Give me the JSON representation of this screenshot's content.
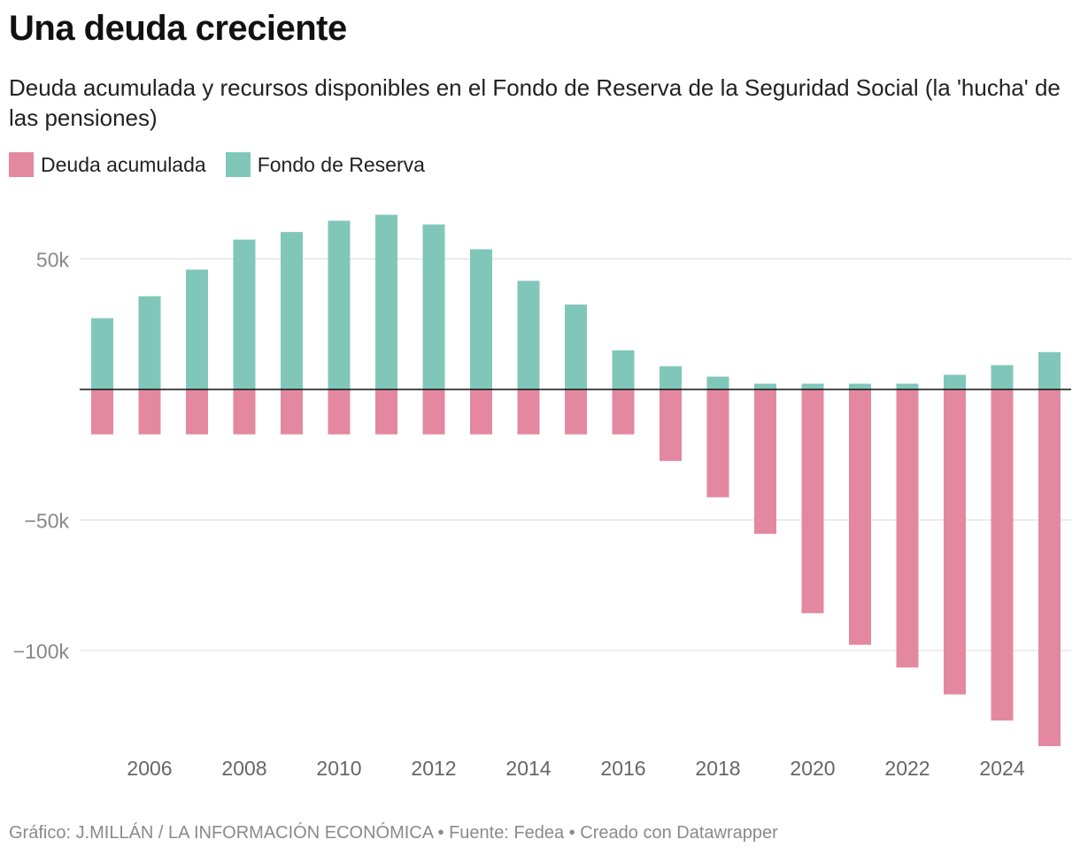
{
  "title": "Una deuda creciente",
  "subtitle": "Deuda acumulada y recursos disponibles en el Fondo de Reserva de la Seguridad Social (la 'hucha' de las pensiones)",
  "footer": "Gráfico: J.MILLÁN / LA INFORMACIÓN ECONÓMICA • Fuente: Fedea  • Creado con Datawrapper",
  "colors": {
    "deuda": "#e388a0",
    "fondo": "#80c7ba",
    "grid": "#dcdcdc",
    "baseline": "#111111",
    "tick": "#888888"
  },
  "chart_data": {
    "type": "bar",
    "x": [
      2005,
      2006,
      2007,
      2008,
      2009,
      2010,
      2011,
      2012,
      2013,
      2014,
      2015,
      2016,
      2017,
      2018,
      2019,
      2020,
      2021,
      2022,
      2023,
      2024,
      2025
    ],
    "x_tick_labels": [
      "2006",
      "2008",
      "2010",
      "2012",
      "2014",
      "2016",
      "2018",
      "2020",
      "2022",
      "2024"
    ],
    "y_tick_values": [
      50000,
      -50000,
      -100000
    ],
    "y_tick_labels": [
      "50k",
      "−50k",
      "−100k"
    ],
    "ylim": [
      -137000,
      67000
    ],
    "grid": true,
    "legend_position": "top-left",
    "series": [
      {
        "name": "Deuda acumulada",
        "values": [
          -17200,
          -17200,
          -17200,
          -17200,
          -17200,
          -17200,
          -17200,
          -17200,
          -17200,
          -17200,
          -17200,
          -17200,
          -27400,
          -41300,
          -55300,
          -85700,
          -97800,
          -106500,
          -116800,
          -126800,
          -136600
        ]
      },
      {
        "name": "Fondo de Reserva",
        "values": [
          27300,
          35700,
          45900,
          57400,
          60300,
          64600,
          66900,
          63200,
          53700,
          41600,
          32500,
          15000,
          8900,
          4900,
          2200,
          2200,
          2200,
          2200,
          5600,
          9300,
          14300
        ]
      }
    ]
  }
}
